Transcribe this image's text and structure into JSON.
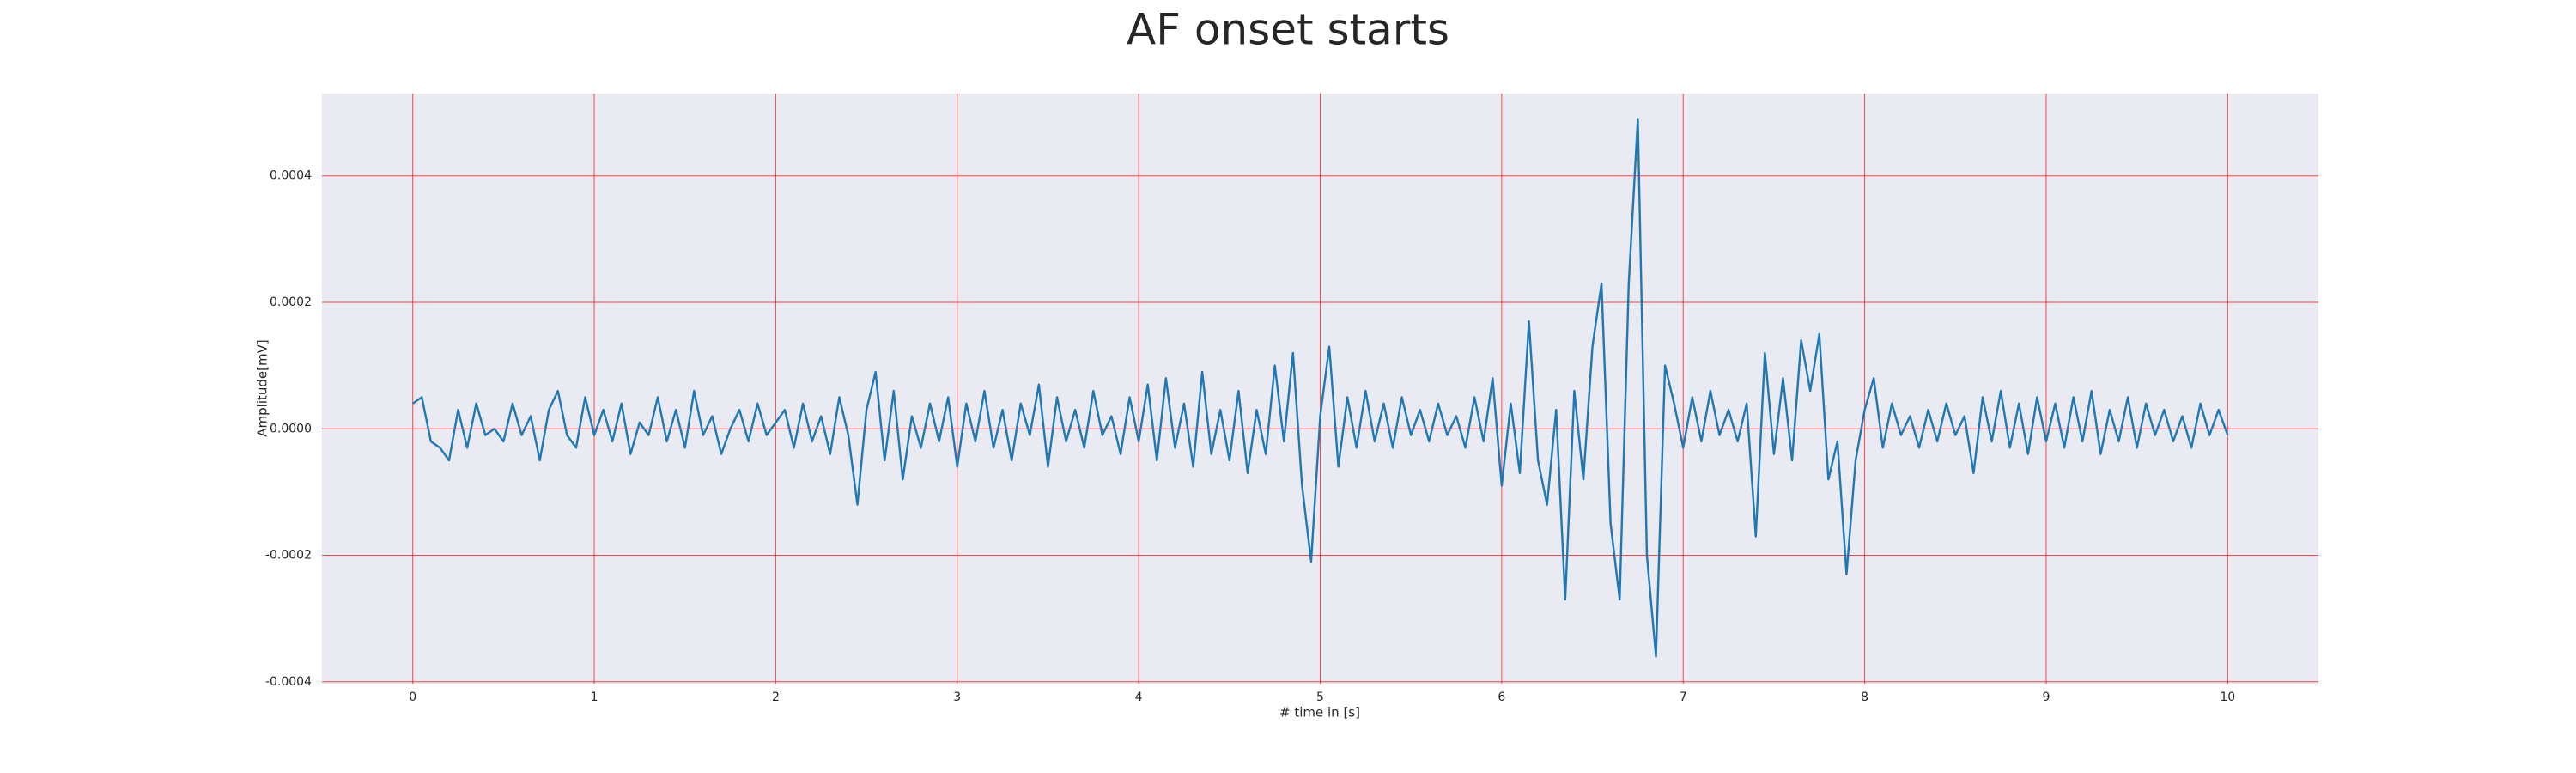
{
  "chart_data": {
    "type": "line",
    "title": "AF onset starts",
    "x_label": "# time in [s]",
    "y_label": "Amplitude[mV]",
    "color": "#1f77b4",
    "grid": true,
    "grid_color": "#ff0000",
    "background": "#eaeaf2",
    "xlim": [
      -0.5,
      10.5
    ],
    "xticks": [
      0,
      1,
      2,
      3,
      4,
      5,
      6,
      7,
      8,
      9,
      10
    ],
    "ylim": [
      -0.000403,
      0.00053
    ],
    "yticks": [
      {
        "value": -0.0004,
        "label": "-0.0004"
      },
      {
        "value": -0.0002,
        "label": "-0.0002"
      },
      {
        "value": 0,
        "label": "0.0000"
      },
      {
        "value": 0.0002,
        "label": "0.0002"
      },
      {
        "value": 0.0004,
        "label": "0.0004"
      }
    ],
    "x": [
      0,
      0.05,
      0.1,
      0.15,
      0.2,
      0.25,
      0.3,
      0.35,
      0.4,
      0.45,
      0.5,
      0.55,
      0.6,
      0.65,
      0.7,
      0.75,
      0.8,
      0.85,
      0.9,
      0.95,
      1,
      1.05,
      1.1,
      1.15,
      1.2,
      1.25,
      1.3,
      1.35,
      1.4,
      1.45,
      1.5,
      1.55,
      1.6,
      1.65,
      1.7,
      1.75,
      1.8,
      1.85,
      1.9,
      1.95,
      2,
      2.05,
      2.1,
      2.15,
      2.2,
      2.25,
      2.3,
      2.35,
      2.4,
      2.45,
      2.5,
      2.55,
      2.6,
      2.65,
      2.7,
      2.75,
      2.8,
      2.85,
      2.9,
      2.95,
      3,
      3.05,
      3.1,
      3.15,
      3.2,
      3.25,
      3.3,
      3.35,
      3.4,
      3.45,
      3.5,
      3.55,
      3.6,
      3.65,
      3.7,
      3.75,
      3.8,
      3.85,
      3.9,
      3.95,
      4,
      4.05,
      4.1,
      4.15,
      4.2,
      4.25,
      4.3,
      4.35,
      4.4,
      4.45,
      4.5,
      4.55,
      4.6,
      4.65,
      4.7,
      4.75,
      4.8,
      4.85,
      4.9,
      4.95,
      5,
      5.05,
      5.1,
      5.15,
      5.2,
      5.25,
      5.3,
      5.35,
      5.4,
      5.45,
      5.5,
      5.55,
      5.6,
      5.65,
      5.7,
      5.75,
      5.8,
      5.85,
      5.9,
      5.95,
      6,
      6.05,
      6.1,
      6.15,
      6.2,
      6.25,
      6.3,
      6.35,
      6.4,
      6.45,
      6.5,
      6.55,
      6.6,
      6.65,
      6.7,
      6.75,
      6.8,
      6.85,
      6.9,
      6.95,
      7,
      7.05,
      7.1,
      7.15,
      7.2,
      7.25,
      7.3,
      7.35,
      7.4,
      7.45,
      7.5,
      7.55,
      7.6,
      7.65,
      7.7,
      7.75,
      7.8,
      7.85,
      7.9,
      7.95,
      8,
      8.05,
      8.1,
      8.15,
      8.2,
      8.25,
      8.3,
      8.35,
      8.4,
      8.45,
      8.5,
      8.55,
      8.6,
      8.65,
      8.7,
      8.75,
      8.8,
      8.85,
      8.9,
      8.95,
      9,
      9.05,
      9.1,
      9.15,
      9.2,
      9.25,
      9.3,
      9.35,
      9.4,
      9.45,
      9.5,
      9.55,
      9.6,
      9.65,
      9.7,
      9.75,
      9.8,
      9.85,
      9.9,
      9.95,
      10
    ],
    "values": [
      4e-05,
      5e-05,
      -2e-05,
      -3e-05,
      -5e-05,
      3e-05,
      -3e-05,
      4e-05,
      -1e-05,
      0,
      -2e-05,
      4e-05,
      -1e-05,
      2e-05,
      -5e-05,
      3e-05,
      6e-05,
      -1e-05,
      -3e-05,
      5e-05,
      -1e-05,
      3e-05,
      -2e-05,
      4e-05,
      -4e-05,
      1e-05,
      -1e-05,
      5e-05,
      -2e-05,
      3e-05,
      -3e-05,
      6e-05,
      -1e-05,
      2e-05,
      -4e-05,
      0,
      3e-05,
      -2e-05,
      4e-05,
      -1e-05,
      1e-05,
      3e-05,
      -3e-05,
      4e-05,
      -2e-05,
      2e-05,
      -4e-05,
      5e-05,
      -1e-05,
      -0.00012,
      3e-05,
      9e-05,
      -5e-05,
      6e-05,
      -8e-05,
      2e-05,
      -3e-05,
      4e-05,
      -2e-05,
      5e-05,
      -6e-05,
      4e-05,
      -2e-05,
      6e-05,
      -3e-05,
      3e-05,
      -5e-05,
      4e-05,
      -1e-05,
      7e-05,
      -6e-05,
      5e-05,
      -2e-05,
      3e-05,
      -3e-05,
      6e-05,
      -1e-05,
      2e-05,
      -4e-05,
      5e-05,
      -2e-05,
      7e-05,
      -5e-05,
      8e-05,
      -3e-05,
      4e-05,
      -6e-05,
      9e-05,
      -4e-05,
      3e-05,
      -5e-05,
      6e-05,
      -7e-05,
      3e-05,
      -4e-05,
      0.0001,
      -2e-05,
      0.00012,
      -9e-05,
      -0.00021,
      2e-05,
      0.00013,
      -6e-05,
      5e-05,
      -3e-05,
      6e-05,
      -2e-05,
      4e-05,
      -3e-05,
      5e-05,
      -1e-05,
      3e-05,
      -2e-05,
      4e-05,
      -1e-05,
      2e-05,
      -3e-05,
      5e-05,
      -2e-05,
      8e-05,
      -9e-05,
      4e-05,
      -7e-05,
      0.00017,
      -5e-05,
      -0.00012,
      3e-05,
      -0.00027,
      6e-05,
      -8e-05,
      0.00013,
      0.00023,
      -0.00015,
      -0.00027,
      0.00023,
      0.00049,
      -0.0002,
      -0.00036,
      0.0001,
      4e-05,
      -3e-05,
      5e-05,
      -2e-05,
      6e-05,
      -1e-05,
      3e-05,
      -2e-05,
      4e-05,
      -0.00017,
      0.00012,
      -4e-05,
      8e-05,
      -5e-05,
      0.00014,
      6e-05,
      0.00015,
      -8e-05,
      -2e-05,
      -0.00023,
      -5e-05,
      3e-05,
      8e-05,
      -3e-05,
      4e-05,
      -1e-05,
      2e-05,
      -3e-05,
      3e-05,
      -2e-05,
      4e-05,
      -1e-05,
      2e-05,
      -7e-05,
      5e-05,
      -2e-05,
      6e-05,
      -3e-05,
      4e-05,
      -4e-05,
      5e-05,
      -2e-05,
      4e-05,
      -3e-05,
      5e-05,
      -2e-05,
      6e-05,
      -4e-05,
      3e-05,
      -2e-05,
      5e-05,
      -3e-05,
      4e-05,
      -1e-05,
      3e-05,
      -2e-05,
      2e-05,
      -3e-05,
      4e-05,
      -1e-05,
      3e-05,
      -1e-05
    ]
  }
}
